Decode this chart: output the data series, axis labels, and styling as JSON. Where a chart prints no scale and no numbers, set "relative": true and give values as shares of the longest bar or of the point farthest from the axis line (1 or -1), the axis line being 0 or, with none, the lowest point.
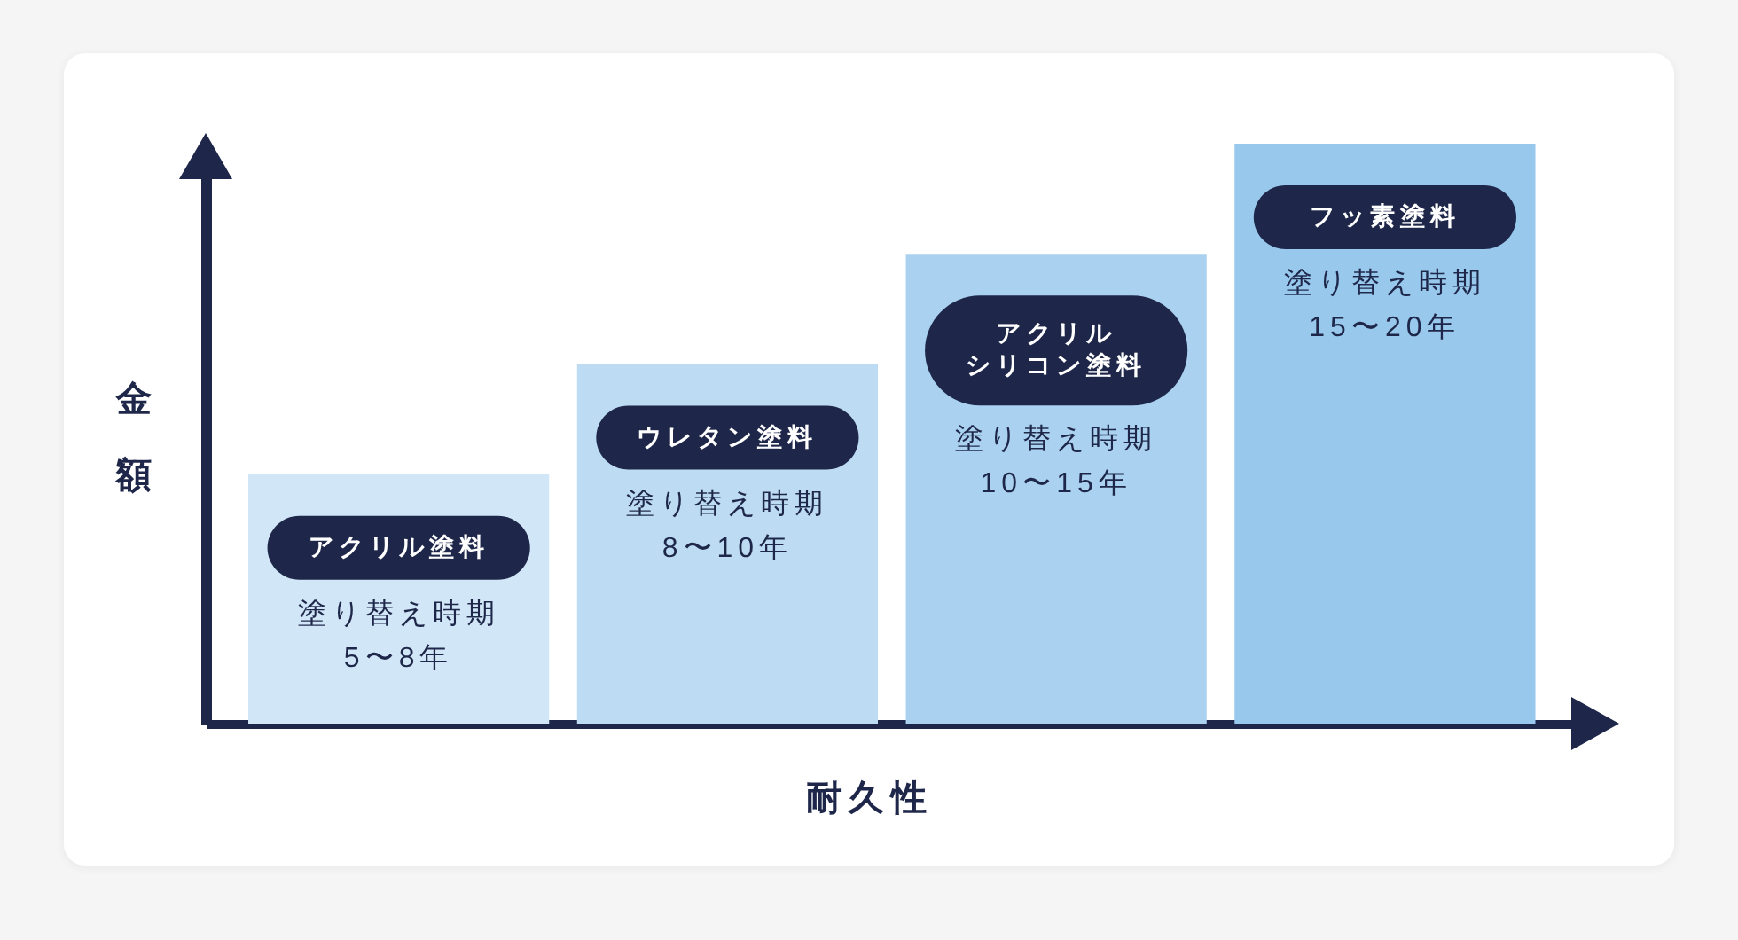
{
  "chart_data": {
    "type": "bar",
    "relative": true,
    "xlabel": "耐久性",
    "ylabel": "金額",
    "categories": [
      "アクリル塗料",
      "ウレタン塗料",
      "アクリルシリコン塗料",
      "フッ素塗料"
    ],
    "values": [
      0.43,
      0.62,
      0.81,
      1
    ],
    "colors": [
      "#d1e6f6",
      "#bddcf3",
      "#aad2f0",
      "#98c8ec"
    ],
    "annotations": [
      "塗り替え時期\n5〜8年",
      "塗り替え時期\n8〜10年",
      "塗り替え時期\n10〜15年",
      "塗り替え時期\n15〜20年"
    ]
  }
}
